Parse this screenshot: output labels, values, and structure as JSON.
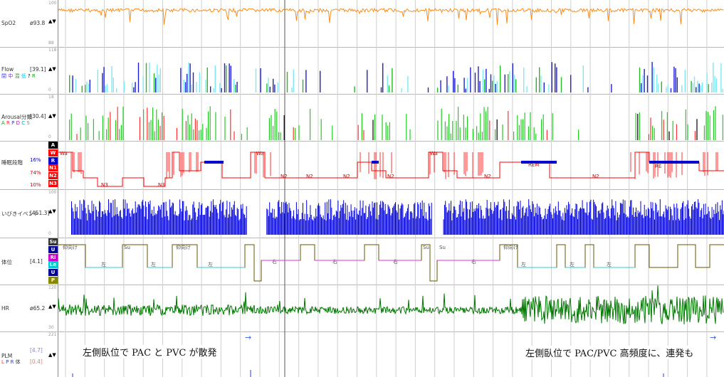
{
  "channels": {
    "spo2": {
      "name": "SpO2",
      "value": "ø93.8",
      "scale_top": "100",
      "scale_bottom": "88"
    },
    "flow": {
      "name": "Flow",
      "value": "[39.1]",
      "scale_top": "118",
      "scale_bottom": "0",
      "legend": [
        "閉",
        "中",
        "混",
        "低",
        "?",
        "R"
      ],
      "legend_colors": [
        "#3a3aff",
        "#7a2fbf",
        "#00b000",
        "#00c8ff",
        "#000000",
        "#00b000"
      ]
    },
    "arousal": {
      "name": "Arousal分類",
      "value": "[30.4]",
      "scale_top": "18",
      "scale_bottom": "0",
      "legend": [
        "A",
        "R",
        "P",
        "D",
        "C",
        "S"
      ],
      "legend_colors": [
        "#00aa00",
        "#ff3333",
        "#3333ff",
        "#cc00cc",
        "#00aaaa",
        "#888888"
      ]
    },
    "sleep": {
      "name": "睡眠段階",
      "stages": [
        "A",
        "W",
        "R",
        "N1",
        "N2",
        "N3"
      ],
      "stage_colors": [
        "#000000",
        "#ff0000",
        "#0000cc",
        "#ff0000",
        "#ff0000",
        "#ff0000"
      ],
      "percents": [
        "16%",
        "74%",
        "10%"
      ]
    },
    "snore": {
      "name": "いびきイベント",
      "value": "[451.3]",
      "scale_top": "100",
      "scale_bottom": "0"
    },
    "position": {
      "name": "体位",
      "value": "[4.1]",
      "stages": [
        "Su",
        "U",
        "Ri",
        "Le",
        "U",
        "P"
      ],
      "stage_colors": [
        "#333333",
        "#000099",
        "#cc00cc",
        "#00cccc",
        "#000099",
        "#888800"
      ]
    },
    "hr": {
      "name": "HR",
      "value": "ø65.2",
      "scale_top": "120",
      "scale_bottom": "30"
    },
    "plm": {
      "name": "PLM",
      "value": "[4.7]",
      "value2": "[0.4]",
      "scale_top": "221",
      "scale_bottom": "0",
      "legend": [
        "L",
        "P",
        "R",
        "体"
      ],
      "legend_colors": [
        "#ff3333",
        "#3333ff",
        "#3333ff",
        "#333333"
      ]
    }
  },
  "sleep_labels": [
    "Wa",
    "N3",
    "N3",
    "Wa",
    "N2",
    "N2",
    "N2",
    "N2",
    "Wa",
    "N2",
    "REM",
    "N2",
    "RE"
  ],
  "position_labels": [
    "仰向け",
    "左",
    "Su",
    "左",
    "仰向け",
    "左",
    "右",
    "右",
    "右",
    "Su",
    "Su",
    "仰向け",
    "右",
    "左",
    "左",
    "左"
  ],
  "annotations": {
    "left": "左側臥位で PAC と PVC が散発",
    "right": "左側臥位で PAC/PVC 高頻度に、連発も"
  },
  "colors": {
    "spo2": "#ff8c1a",
    "flow_obst": "#1f1fd6",
    "flow_low": "#7fe8f5",
    "arousal": "#22cc22",
    "sleep": "#ff0000",
    "snore": "#0000dd",
    "position_su": "#665500",
    "position_le": "#33cccc",
    "position_ri": "#dd33dd",
    "hr": "#007700",
    "marker": "#3b5fd8"
  }
}
